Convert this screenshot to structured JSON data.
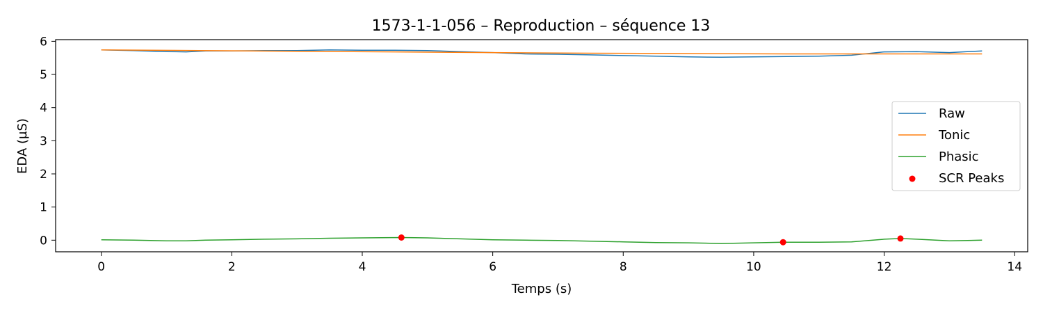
{
  "chart_data": {
    "type": "line",
    "title": "1573-1-1-056 – Reproduction – séquence 13",
    "xlabel": "Temps (s)",
    "ylabel": "EDA (µS)",
    "xlim": [
      -0.7,
      14.2
    ],
    "ylim": [
      -0.35,
      6.05
    ],
    "xticks": [
      0,
      2,
      4,
      6,
      8,
      10,
      12,
      14
    ],
    "yticks": [
      0,
      1,
      2,
      3,
      4,
      5,
      6
    ],
    "grid": false,
    "legend_position": "center-right",
    "series": [
      {
        "name": "Raw",
        "color": "#1f77b4",
        "x": [
          0,
          0.5,
          1.0,
          1.3,
          1.6,
          2.0,
          2.5,
          3.0,
          3.5,
          4.0,
          4.5,
          5.0,
          5.5,
          6.0,
          6.5,
          7.0,
          7.5,
          8.0,
          8.5,
          9.0,
          9.5,
          10.0,
          10.5,
          11.0,
          11.5,
          12.0,
          12.5,
          13.0,
          13.5
        ],
        "y": [
          5.74,
          5.72,
          5.69,
          5.68,
          5.71,
          5.71,
          5.72,
          5.72,
          5.74,
          5.73,
          5.73,
          5.72,
          5.69,
          5.66,
          5.62,
          5.61,
          5.59,
          5.57,
          5.55,
          5.53,
          5.52,
          5.53,
          5.54,
          5.55,
          5.58,
          5.68,
          5.69,
          5.66,
          5.71
        ]
      },
      {
        "name": "Tonic",
        "color": "#ff7f0e",
        "x": [
          0,
          1.5,
          3.0,
          4.5,
          6.0,
          7.5,
          9.0,
          10.5,
          12.0,
          13.5
        ],
        "y": [
          5.74,
          5.72,
          5.7,
          5.68,
          5.66,
          5.64,
          5.63,
          5.62,
          5.62,
          5.62
        ]
      },
      {
        "name": "Phasic",
        "color": "#2ca02c",
        "x": [
          0,
          0.5,
          1.0,
          1.3,
          1.6,
          2.0,
          2.5,
          3.0,
          3.5,
          4.0,
          4.6,
          5.0,
          5.5,
          6.0,
          6.5,
          7.0,
          7.5,
          8.0,
          8.5,
          9.0,
          9.5,
          10.0,
          10.45,
          11.0,
          11.5,
          12.0,
          12.25,
          12.5,
          13.0,
          13.5
        ],
        "y": [
          0.01,
          0.0,
          -0.02,
          -0.02,
          0.0,
          0.01,
          0.03,
          0.04,
          0.06,
          0.07,
          0.08,
          0.07,
          0.04,
          0.01,
          0.0,
          -0.01,
          -0.03,
          -0.05,
          -0.07,
          -0.08,
          -0.1,
          -0.08,
          -0.06,
          -0.06,
          -0.05,
          0.03,
          0.05,
          0.03,
          -0.02,
          0.0
        ]
      }
    ],
    "peaks": {
      "name": "SCR Peaks",
      "color": "#ff0000",
      "x": [
        4.6,
        10.45,
        12.25
      ],
      "y": [
        0.08,
        -0.06,
        0.05
      ]
    }
  }
}
